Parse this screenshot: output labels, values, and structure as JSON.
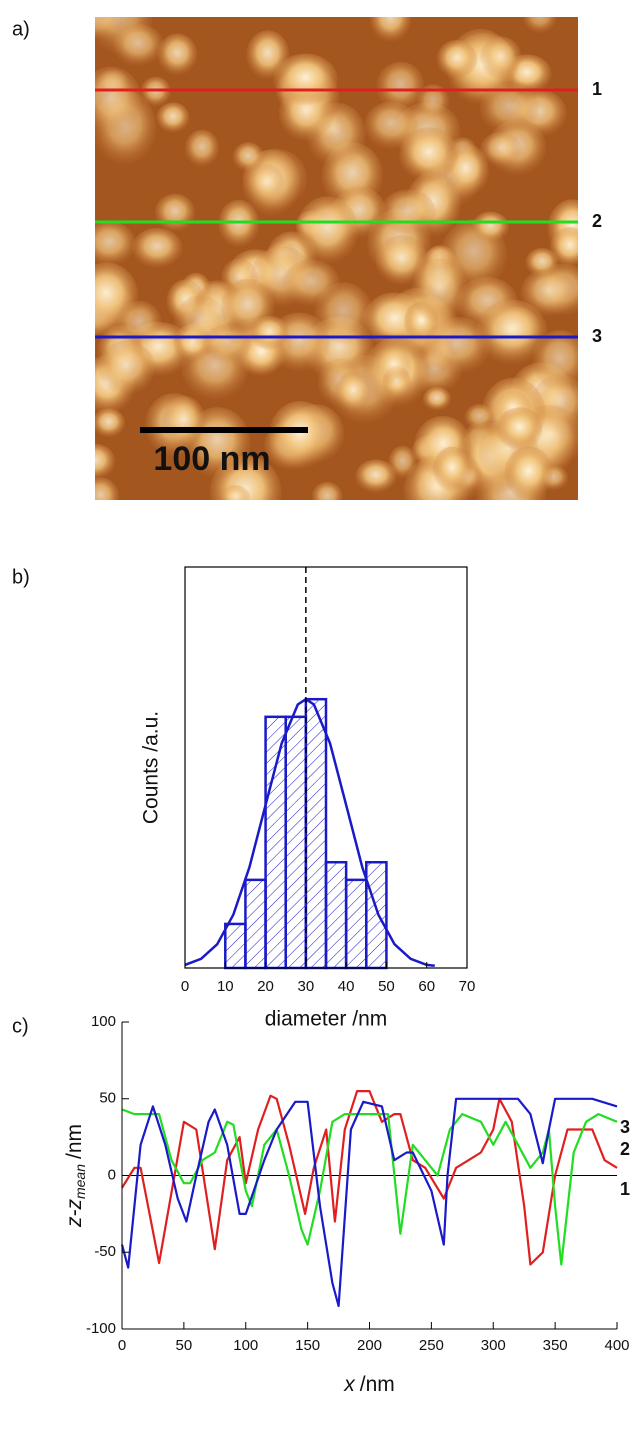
{
  "image": {
    "panel_label": "a)",
    "scale_bar": "100 nm"
  },
  "chart_data": [
    {
      "type": "histogram",
      "panel_label": "b)",
      "x_label": "diameter /nm",
      "y_label": "Counts /a.u.",
      "color": "#1a1ac8",
      "bins": [
        10,
        15,
        20,
        25,
        30,
        35,
        40,
        45,
        50
      ],
      "counts": [
        1,
        2,
        5.7,
        5.7,
        6.1,
        2.4,
        2,
        2.4
      ],
      "fit": {
        "x": [
          0,
          4,
          8,
          12,
          16,
          20,
          24,
          28,
          30,
          32,
          36,
          40,
          44,
          48,
          52,
          56,
          60,
          62
        ],
        "values": [
          0.07,
          0.21,
          0.54,
          1.21,
          2.29,
          3.7,
          5.1,
          5.98,
          6.1,
          5.98,
          5.1,
          3.7,
          2.29,
          1.21,
          0.54,
          0.21,
          0.07,
          0.05
        ]
      },
      "vline": 30,
      "xlim": [
        0,
        70
      ],
      "xticks": [
        0,
        10,
        20,
        30,
        40,
        50,
        60,
        70
      ],
      "ylim": [
        0,
        9.1
      ]
    },
    {
      "type": "line",
      "panel_label": "c)",
      "x_label": {
        "var": "x",
        "unit": "/nm"
      },
      "y_label": {
        "main": "z-z",
        "sub": "mean",
        "unit": "/nm"
      },
      "hline": 0,
      "xlim": [
        0,
        400
      ],
      "xticks": [
        0,
        50,
        100,
        150,
        200,
        250,
        300,
        350,
        400
      ],
      "ylim": [
        -100,
        100
      ],
      "yticks": [
        -100,
        -50,
        0,
        50,
        100
      ],
      "series": [
        {
          "name": "1",
          "color": "#e02020",
          "x": [
            0,
            10,
            15,
            30,
            50,
            60,
            75,
            85,
            95,
            100,
            110,
            120,
            125,
            135,
            148,
            155,
            165,
            172,
            180,
            190,
            200,
            210,
            220,
            225,
            235,
            245,
            260,
            270,
            280,
            290,
            300,
            305,
            315,
            325,
            330,
            340,
            350,
            360,
            370,
            380,
            390,
            400
          ],
          "values": [
            -8,
            5,
            5,
            -57,
            35,
            30,
            -48,
            10,
            25,
            -5,
            30,
            52,
            50,
            20,
            -25,
            5,
            30,
            -30,
            30,
            55,
            55,
            35,
            40,
            40,
            10,
            5,
            -15,
            5,
            10,
            15,
            30,
            50,
            35,
            -20,
            -58,
            -50,
            0,
            30,
            30,
            30,
            10,
            5
          ]
        },
        {
          "name": "2",
          "color": "#22dd22",
          "x": [
            0,
            10,
            30,
            40,
            50,
            55,
            65,
            75,
            85,
            90,
            100,
            105,
            115,
            125,
            135,
            145,
            150,
            160,
            170,
            180,
            200,
            215,
            225,
            235,
            245,
            255,
            265,
            275,
            290,
            300,
            310,
            320,
            330,
            340,
            345,
            350,
            355,
            365,
            375,
            385,
            400
          ],
          "values": [
            43,
            40,
            40,
            10,
            -5,
            -5,
            10,
            15,
            35,
            33,
            -10,
            -20,
            20,
            30,
            0,
            -35,
            -45,
            -10,
            35,
            40,
            40,
            40,
            -38,
            20,
            10,
            0,
            30,
            40,
            35,
            20,
            35,
            20,
            5,
            15,
            30,
            -20,
            -58,
            15,
            35,
            40,
            35
          ]
        },
        {
          "name": "3",
          "color": "#1a1ac8",
          "x": [
            0,
            5,
            15,
            25,
            35,
            45,
            52,
            60,
            70,
            75,
            85,
            95,
            100,
            115,
            125,
            140,
            150,
            160,
            170,
            175,
            185,
            195,
            210,
            220,
            230,
            235,
            250,
            260,
            263,
            270,
            300,
            320,
            330,
            340,
            345,
            350,
            380,
            400
          ],
          "values": [
            -45,
            -60,
            20,
            45,
            20,
            -15,
            -30,
            0,
            35,
            43,
            20,
            -25,
            -25,
            10,
            30,
            48,
            48,
            -20,
            -70,
            -85,
            30,
            48,
            45,
            10,
            15,
            15,
            -10,
            -45,
            0,
            50,
            50,
            50,
            40,
            8,
            30,
            50,
            50,
            45
          ]
        }
      ]
    }
  ]
}
